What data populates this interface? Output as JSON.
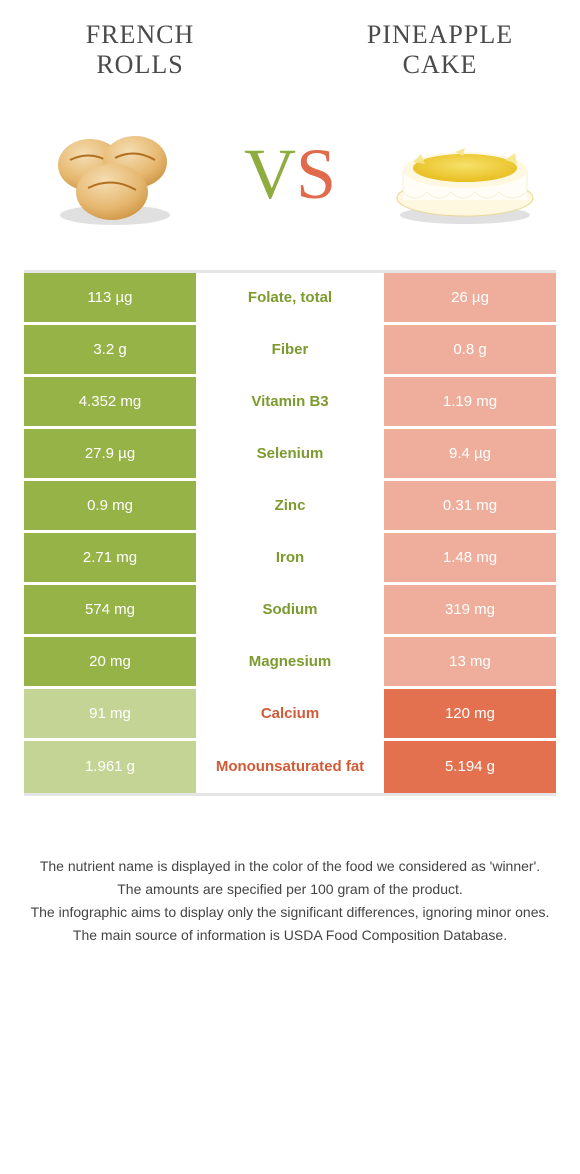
{
  "colors": {
    "green": "#96b347",
    "green_full": "#96b347",
    "green_faded": "#c4d494",
    "orange": "#e3714f",
    "orange_full": "#e3714f",
    "orange_faded": "#eeae9b",
    "text_green": "#7d9a2f",
    "text_orange": "#d25a37",
    "row_gap": "#ffffff",
    "background": "#ffffff"
  },
  "header": {
    "left_title": "FRENCH ROLLS",
    "right_title": "PINEAPPLE CAKE",
    "vs_v": "V",
    "vs_s": "S"
  },
  "table": {
    "rows": [
      {
        "left": "113 µg",
        "label": "Folate, total",
        "right": "26 µg",
        "winner": "left"
      },
      {
        "left": "3.2 g",
        "label": "Fiber",
        "right": "0.8 g",
        "winner": "left"
      },
      {
        "left": "4.352 mg",
        "label": "Vitamin B3",
        "right": "1.19 mg",
        "winner": "left"
      },
      {
        "left": "27.9 µg",
        "label": "Selenium",
        "right": "9.4 µg",
        "winner": "left"
      },
      {
        "left": "0.9 mg",
        "label": "Zinc",
        "right": "0.31 mg",
        "winner": "left"
      },
      {
        "left": "2.71 mg",
        "label": "Iron",
        "right": "1.48 mg",
        "winner": "left"
      },
      {
        "left": "574 mg",
        "label": "Sodium",
        "right": "319 mg",
        "winner": "left"
      },
      {
        "left": "20 mg",
        "label": "Magnesium",
        "right": "13 mg",
        "winner": "left"
      },
      {
        "left": "91 mg",
        "label": "Calcium",
        "right": "120 mg",
        "winner": "right"
      },
      {
        "left": "1.961 g",
        "label": "Monounsaturated fat",
        "right": "5.194 g",
        "winner": "right"
      }
    ]
  },
  "footer": {
    "line1": "The nutrient name is displayed in the color of the food we considered as 'winner'.",
    "line2": "The amounts are specified per 100 gram of the product.",
    "line3": "The infographic aims to display only the significant differences, ignoring minor ones.",
    "line4": "The main source of information is USDA Food Composition Database."
  }
}
